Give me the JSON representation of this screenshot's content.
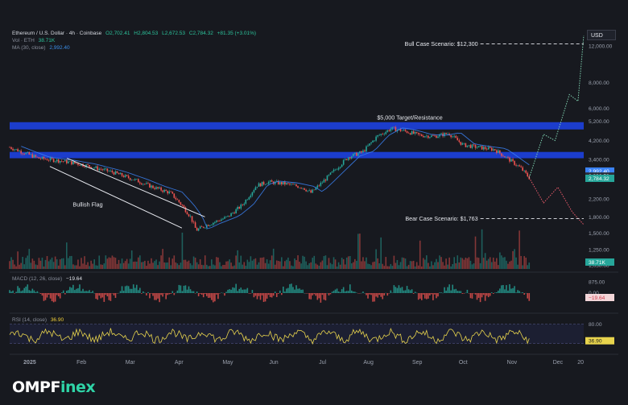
{
  "header": {
    "symbol": "Ethereum / U.S. Dollar · 4h · Coinbase",
    "o": "O2,702.41",
    "h": "H2,804.53",
    "l": "L2,672.53",
    "c": "C2,784.32",
    "chg": "+81.35 (+3.01%)",
    "vol_label": "Vol · ETH",
    "vol_value": "38.71K",
    "ma_label": "MA (30, close)",
    "ma_value": "2,992.40"
  },
  "currency_button": "USD",
  "colors": {
    "up": "#26a69a",
    "down": "#ef5350",
    "ma": "#3b82f6",
    "rsi": "#e8d44d",
    "zone": "#1c3fd6",
    "bull": "#7fd1b0",
    "bear": "#e85a6a"
  },
  "chart_data": {
    "type": "line",
    "instrument": "ETH/USD 4h",
    "yscale": "log",
    "ylim": [
      1000,
      14500
    ],
    "price_ticks": [
      "12,000.00",
      "8,000.00",
      "6,000.00",
      "5,200.00",
      "4,200.00",
      "3,400.00",
      "2,200.00",
      "1,800.00",
      "1,500.00",
      "1,250.00",
      "1,050.00",
      "875.00"
    ],
    "x_labels": [
      "2025",
      "Feb",
      "Mar",
      "Apr",
      "May",
      "Jun",
      "Jul",
      "Aug",
      "Sep",
      "Oct",
      "Nov",
      "Dec",
      "20"
    ],
    "price_path": [
      [
        0,
        3900
      ],
      [
        0.05,
        3450
      ],
      [
        0.09,
        3350
      ],
      [
        0.13,
        3200
      ],
      [
        0.18,
        2950
      ],
      [
        0.22,
        2700
      ],
      [
        0.25,
        2500
      ],
      [
        0.28,
        2350
      ],
      [
        0.3,
        2050
      ],
      [
        0.315,
        1800
      ],
      [
        0.325,
        1550
      ],
      [
        0.345,
        1650
      ],
      [
        0.38,
        1800
      ],
      [
        0.405,
        2050
      ],
      [
        0.43,
        2550
      ],
      [
        0.45,
        2650
      ],
      [
        0.48,
        2600
      ],
      [
        0.51,
        2500
      ],
      [
        0.525,
        2350
      ],
      [
        0.545,
        2650
      ],
      [
        0.565,
        3000
      ],
      [
        0.59,
        3500
      ],
      [
        0.615,
        3700
      ],
      [
        0.64,
        4400
      ],
      [
        0.665,
        4800
      ],
      [
        0.69,
        4650
      ],
      [
        0.715,
        4450
      ],
      [
        0.74,
        4400
      ],
      [
        0.765,
        4550
      ],
      [
        0.79,
        4000
      ],
      [
        0.815,
        3900
      ],
      [
        0.845,
        3800
      ],
      [
        0.87,
        3400
      ],
      [
        0.89,
        3100
      ],
      [
        0.905,
        2780
      ]
    ],
    "scenarios": [
      {
        "label": "Bull Case Scenario: $12,300",
        "value": 12300,
        "path": [
          [
            0.905,
            2780
          ],
          [
            0.93,
            4500
          ],
          [
            0.95,
            4200
          ],
          [
            0.975,
            7000
          ],
          [
            0.99,
            6500
          ],
          [
            1.0,
            13500
          ]
        ]
      },
      {
        "label": "Bear Case Scenario: $1,763",
        "value": 1763,
        "path": [
          [
            0.905,
            2780
          ],
          [
            0.93,
            2100
          ],
          [
            0.955,
            2500
          ],
          [
            0.98,
            1900
          ],
          [
            1.0,
            1650
          ]
        ]
      }
    ],
    "zones": [
      {
        "label": "$5,000 Target/Resistance",
        "low": 4750,
        "high": 5150
      },
      {
        "label": "",
        "low": 3450,
        "high": 3700
      }
    ],
    "pattern": {
      "label": "Bullish Flag",
      "upper": [
        [
          0.1,
          3450
        ],
        [
          0.34,
          1800
        ]
      ],
      "lower": [
        [
          0.07,
          3150
        ],
        [
          0.3,
          1590
        ]
      ]
    },
    "price_labels": [
      {
        "value": "2,992.40",
        "price": 2992,
        "color": "#3b82f6"
      },
      {
        "value": "2,830.59",
        "price": 2830,
        "color": "#2a2e39"
      },
      {
        "value": "2,784.32",
        "price": 2760,
        "color": "#26a69a"
      }
    ],
    "volume": {
      "value_label": "38.71K"
    },
    "macd": {
      "label": "MACD (12, 26, close)",
      "value": "−19.64",
      "zero_label": "0.00"
    },
    "rsi": {
      "label": "RSI (14, close)",
      "value": "36.90",
      "upper_label": "80.00",
      "upper": 80,
      "lower": 30
    }
  }
}
